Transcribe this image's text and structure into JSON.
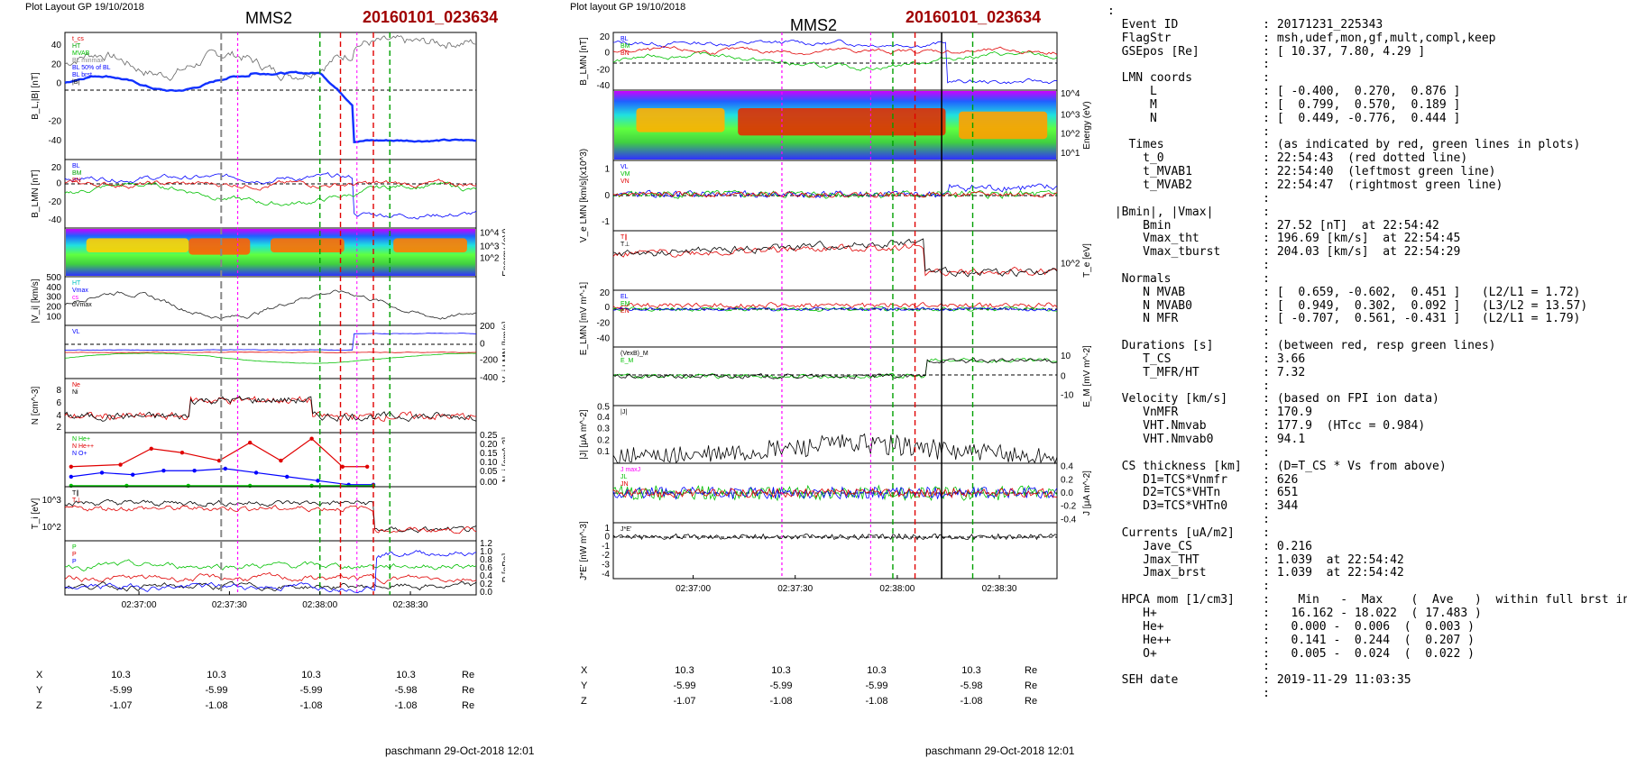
{
  "left_panel": {
    "header": "Plot Layout GP 19/10/2018",
    "title": "MMS2",
    "date": "20160101_023634",
    "footer": "paschmann 29-Oct-2018 12:01",
    "panels": {
      "bl": {
        "ylabel": "B_L,|B| [nT]",
        "ticks": [
          "40",
          "20",
          "0",
          "-20",
          "-40"
        ],
        "legend": [
          "t_cs",
          "HT",
          "MVAB",
          "BL minmax",
          "BL 50% of BL",
          "BL brst",
          "|B|"
        ]
      },
      "blmn": {
        "ylabel": "B_LMN [nT]",
        "ticks": [
          "20",
          "0",
          "-20",
          "-40"
        ],
        "legend": [
          "BL",
          "BM",
          "BN"
        ]
      },
      "spec": {
        "ylabel": "Energy (eV)",
        "ticks": [
          "10^4",
          "10^3",
          "10^2"
        ]
      },
      "vi": {
        "ylabel": "|V_i| [km/s]",
        "ticks": [
          "500",
          "400",
          "300",
          "200",
          "100"
        ],
        "legend": [
          "HT",
          "Vmax",
          "cs",
          "dVmax"
        ]
      },
      "vilmn": {
        "ylabel": "V_i LMN [km/s]",
        "ticks": [
          "200",
          "0",
          "-200",
          "-400"
        ],
        "legend": [
          "VL"
        ]
      },
      "n": {
        "ylabel": "N [cm^-3]",
        "ticks": [
          "8",
          "6",
          "4",
          "2"
        ],
        "legend": [
          "Ne",
          "Ni"
        ]
      },
      "nhp": {
        "ylabel": "N_i [cm^-3]",
        "ticks": [
          "0.25",
          "0.20",
          "0.15",
          "0.10",
          "0.05",
          "0.00"
        ],
        "legend": [
          "N He+",
          "N He++",
          "N O+"
        ]
      },
      "ti": {
        "ylabel": "T_i [eV]",
        "ticks": [
          "10^3",
          "10^2"
        ],
        "legend": [
          "T∥",
          "T⊥"
        ]
      },
      "p": {
        "ylabel": "P [nPa]",
        "ticks": [
          "1.2",
          "1.0",
          "0.8",
          "0.6",
          "0.4",
          "0.2",
          "0.0"
        ],
        "legend": [
          "P",
          "P",
          "P"
        ]
      }
    },
    "time_ticks": [
      "02:37:00",
      "02:37:30",
      "02:38:00",
      "02:38:30"
    ],
    "coords": [
      {
        "label": "X",
        "values": [
          "10.3",
          "10.3",
          "10.3",
          "10.3"
        ],
        "unit": "Re"
      },
      {
        "label": "Y",
        "values": [
          "-5.99",
          "-5.99",
          "-5.99",
          "-5.98"
        ],
        "unit": "Re"
      },
      {
        "label": "Z",
        "values": [
          "-1.07",
          "-1.08",
          "-1.08",
          "-1.08"
        ],
        "unit": "Re"
      }
    ]
  },
  "middle_panel": {
    "header": "Plot layout GP 19/10/2018",
    "title": "MMS2",
    "date": "20160101_023634",
    "footer": "paschmann 29-Oct-2018 12:01",
    "panels": {
      "blmn": {
        "ylabel": "B_LMN [nT]",
        "ticks": [
          "20",
          "0",
          "-20",
          "-40"
        ],
        "legend": [
          "BL",
          "BM",
          "BN"
        ]
      },
      "spec": {
        "ylabel": "Energy (eV)",
        "ticks": [
          "10^4",
          "10^3",
          "10^2",
          "10^1"
        ]
      },
      "ve": {
        "ylabel": "V_e LMN [km/s](x10^3)",
        "ticks": [
          "1",
          "0",
          "-1"
        ],
        "legend": [
          "VL",
          "VM",
          "VN"
        ]
      },
      "te": {
        "ylabel": "T_e [eV]",
        "ticks": [
          "10^2"
        ],
        "legend": [
          "T∥",
          "T⊥"
        ]
      },
      "e": {
        "ylabel": "E_LMN [mV m^-1]",
        "ticks": [
          "20",
          "0",
          "-20",
          "-40"
        ],
        "legend": [
          "EL",
          "EM",
          "EN"
        ]
      },
      "em": {
        "ylabel": "E_M [mV m^-2]",
        "ticks": [
          "10",
          "0",
          "-10"
        ],
        "legend": [
          "(VexB)_M",
          "E_M"
        ]
      },
      "j": {
        "ylabel": "|J| [μA m^-2]",
        "ticks": [
          "0.5",
          "0.4",
          "0.3",
          "0.2",
          "0.1"
        ],
        "legend": [
          "|J|"
        ]
      },
      "jlmn": {
        "ylabel": "J [μA m^-2]",
        "ticks": [
          "0.4",
          "0.2",
          "0.0",
          "-0.2",
          "-0.4"
        ],
        "legend": [
          "J maxJ",
          "JL",
          "JN"
        ]
      },
      "je": {
        "ylabel": "J*E' [nW m^-3]",
        "ticks": [
          "1",
          "0",
          "-1",
          "-2",
          "-3",
          "-4"
        ],
        "legend": [
          "J*E'"
        ]
      }
    },
    "time_ticks": [
      "02:37:00",
      "02:37:30",
      "02:38:00",
      "02:38:30"
    ],
    "coords": [
      {
        "label": "X",
        "values": [
          "10.3",
          "10.3",
          "10.3",
          "10.3"
        ],
        "unit": "Re"
      },
      {
        "label": "Y",
        "values": [
          "-5.99",
          "-5.99",
          "-5.99",
          "-5.98"
        ],
        "unit": "Re"
      },
      {
        "label": "Z",
        "values": [
          "-1.07",
          "-1.08",
          "-1.08",
          "-1.08"
        ],
        "unit": "Re"
      }
    ]
  },
  "right_panel": {
    "lines": [
      ":",
      "  Event ID            : 20171231_225343",
      "  FlagStr             : msh,udef,mon,gf,mult,compl,keep",
      "  GSEpos [Re]         : [ 10.37, 7.80, 4.29 ]",
      "                      :",
      "  LMN coords          :",
      "      L               : [ -0.400,  0.270,  0.876 ]",
      "      M               : [  0.799,  0.570,  0.189 ]",
      "      N               : [  0.449, -0.776,  0.444 ]",
      "                      :",
      "   Times              : (as indicated by red, green lines in plots)",
      "     t_0              : 22:54:43  (red dotted line)",
      "     t_MVAB1          : 22:54:40  (leftmost green line)",
      "     t_MVAB2          : 22:54:47  (rightmost green line)",
      "                      :",
      " |Bmin|, |Vmax|       :",
      "     Bmin             : 27.52 [nT]  at 22:54:42",
      "     Vmax_tht         : 196.69 [km/s]  at 22:54:45",
      "     Vmax_tburst      : 204.03 [km/s]  at 22:54:29",
      "                      :",
      "  Normals             :",
      "     N MVAB           : [  0.659, -0.602,  0.451 ]   (L2/L1 = 1.72)",
      "     N MVAB0          : [  0.949,  0.302,  0.092 ]   (L3/L2 = 13.57)",
      "     N MFR            : [ -0.707,  0.561, -0.431 ]   (L2/L1 = 1.79)",
      "                      :",
      "  Durations [s]       : (between red, resp green lines)",
      "     T_CS             : 3.66",
      "     T_MFR/HT         : 7.32",
      "                      :",
      "  Velocity [km/s]     : (based on FPI ion data)",
      "     VnMFR            : 170.9",
      "     VHT.Nmvab        : 177.9  (HTcc = 0.984)",
      "     VHT.Nmvab0       : 94.1",
      "                      :",
      "  CS thickness [km]   : (D=T_CS * Vs from above)",
      "     D1=TCS*Vnmfr     : 626",
      "     D2=TCS*VHTn      : 651",
      "     D3=TCS*VHTn0     : 344",
      "                      :",
      "  Currents [uA/m2]    :",
      "     Jave_CS          : 0.216",
      "     Jmax_THT         : 1.039  at 22:54:42",
      "     Jmax_brst        : 1.039  at 22:54:42",
      "                      :",
      "  HPCA mom [1/cm3]    :    Min   -  Max    (  Ave   )  within full brst int",
      "     H+               :   16.162 - 18.022  ( 17.483 )",
      "     He+              :   0.000 -  0.006  (  0.003 )",
      "     He++             :   0.141 -  0.244  (  0.207 )",
      "     O+               :   0.005 -  0.024  (  0.022 )",
      "                      :",
      "  SEH date            : 2019-11-29 11:03:35",
      "                      :"
    ]
  },
  "chart_data": [
    {
      "type": "line",
      "title": "MMS2 20160101_023634 (left stack)",
      "x_ticks": [
        "02:37:00",
        "02:37:30",
        "02:38:00",
        "02:38:30"
      ],
      "panels": [
        "B_L,|B| [nT]",
        "B_LMN [nT]",
        "Energy (eV)",
        "|V_i| [km/s]",
        "V_i LMN [km/s]",
        "N [cm^-3]",
        "N_i [cm^-3]",
        "T_i [eV]",
        "P [nPa]"
      ],
      "series": [
        {
          "name": "N He++",
          "values": [
            0.1,
            0.11,
            0.19,
            0.17,
            0.13,
            0.22,
            0.13,
            0.24,
            0.1,
            0.1
          ]
        },
        {
          "name": "N O+",
          "values": [
            0.05,
            0.07,
            0.06,
            0.08,
            0.08,
            0.09,
            0.07,
            0.05,
            0.03,
            0.01,
            0.01
          ]
        },
        {
          "name": "N He+",
          "values": [
            0.01,
            0.01,
            0.01,
            0.01,
            0.01,
            0.01,
            0.01,
            0.01,
            0.01
          ]
        }
      ]
    },
    {
      "type": "line",
      "title": "MMS2 20160101_023634 (middle stack)",
      "x_ticks": [
        "02:37:00",
        "02:37:30",
        "02:38:00",
        "02:38:30"
      ],
      "panels": [
        "B_LMN [nT]",
        "Energy (eV)",
        "V_e LMN",
        "T_e [eV]",
        "E_LMN",
        "E_M",
        "|J|",
        "J",
        "J*E'"
      ]
    }
  ]
}
